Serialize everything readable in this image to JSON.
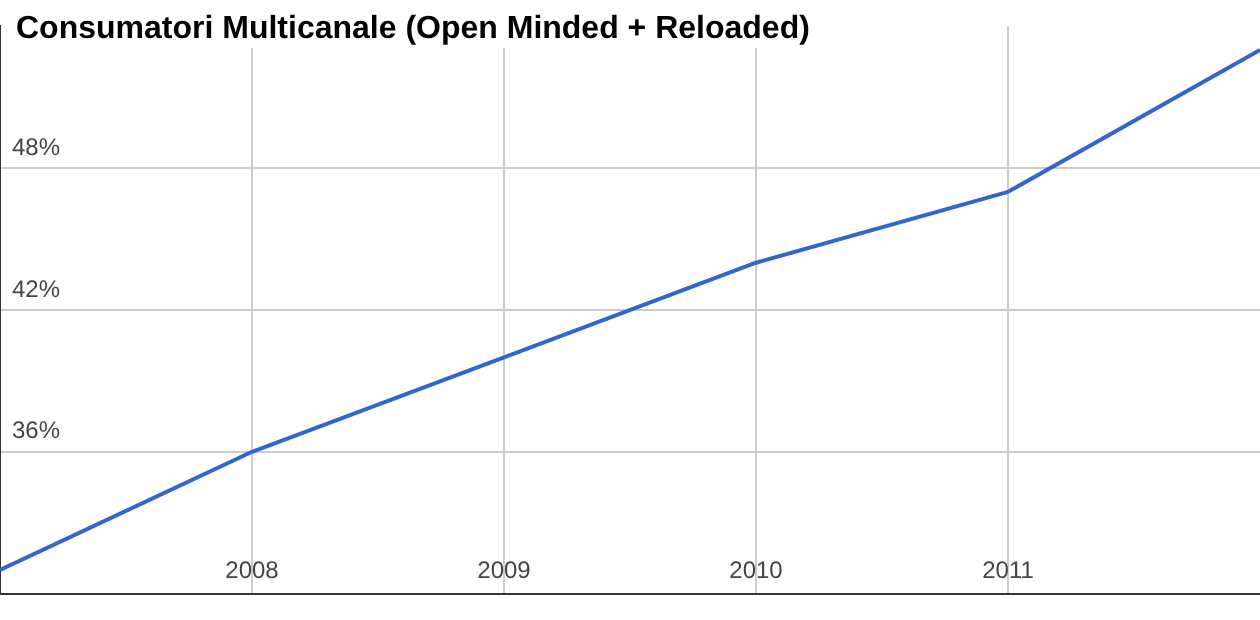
{
  "chart_data": {
    "type": "line",
    "title": "Consumatori Multicanale (Open Minded + Reloaded)",
    "x": [
      2007,
      2008,
      2009,
      2010,
      2011,
      2012
    ],
    "series": [
      {
        "color": "#3366cc",
        "values": [
          31,
          36,
          40,
          44,
          47,
          53
        ]
      }
    ],
    "xlim": [
      2007,
      2012
    ],
    "xticks": [
      2008,
      2009,
      2010,
      2011
    ],
    "ylim": [
      30,
      54
    ],
    "yticks": [
      {
        "value": 36,
        "label": "36%"
      },
      {
        "value": 42,
        "label": "42%"
      },
      {
        "value": 48,
        "label": "48%"
      }
    ],
    "grid": true,
    "legend": false,
    "marker": "none",
    "line_style": "solid"
  }
}
